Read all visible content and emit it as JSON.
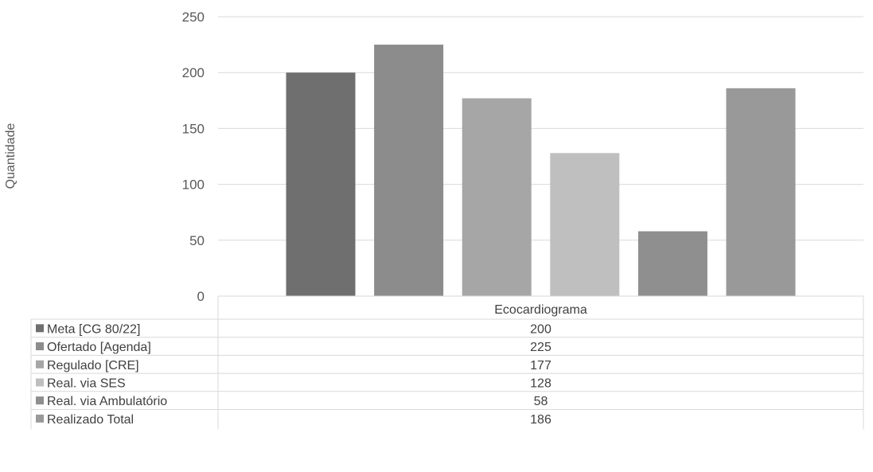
{
  "chart_data": {
    "type": "bar",
    "categories": [
      "Ecocardiograma"
    ],
    "ylabel": "Quantidade",
    "ylim": [
      0,
      250
    ],
    "yticks": [
      0,
      50,
      100,
      150,
      200,
      250
    ],
    "grid": true,
    "legend": "data-table",
    "series": [
      {
        "name": "Meta [CG 80/22]",
        "values": [
          200
        ],
        "color": "#6f6f6f"
      },
      {
        "name": "Ofertado [Agenda]",
        "values": [
          225
        ],
        "color": "#8c8c8c"
      },
      {
        "name": "Regulado [CRE]",
        "values": [
          177
        ],
        "color": "#a6a6a6"
      },
      {
        "name": "Real. via SES",
        "values": [
          128
        ],
        "color": "#bfbfbf"
      },
      {
        "name": "Real. via Ambulatório",
        "values": [
          58
        ],
        "color": "#8f8f8f"
      },
      {
        "name": "Realizado Total",
        "values": [
          186
        ],
        "color": "#999999"
      }
    ]
  }
}
